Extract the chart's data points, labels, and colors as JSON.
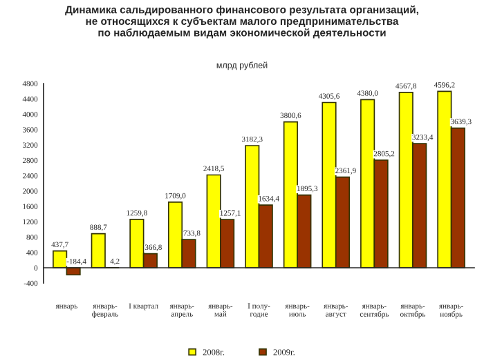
{
  "chart_data": {
    "type": "bar",
    "title": "Динамика сальдированного финансового результата организаций,\nне относящихся к субъектам малого предпринимательства\nпо наблюдаемым видам экономической деятельности",
    "subtitle": "млрд рублей",
    "categories": [
      "январь",
      "январь-\nфевраль",
      "I квартал",
      "январь-\nапрель",
      "январь-\nмай",
      "I полу-\nгодие",
      "январь-\nиюль",
      "январь-\nавгуст",
      "январь-\nсентябрь",
      "январь-\nоктябрь",
      "январь-\nноябрь"
    ],
    "series": [
      {
        "name": "2008г.",
        "color": "#ffff00",
        "values": [
          437.7,
          888.7,
          1259.8,
          1709.0,
          2418.5,
          3182.3,
          3800.6,
          4305.6,
          4380.0,
          4567.8,
          4596.2
        ],
        "value_labels": [
          "437,7",
          "888,7",
          "1259,8",
          "1709,0",
          "2418,5",
          "3182,3",
          "3800,6",
          "4305,6",
          "4380,0",
          "4567,8",
          "4596,2"
        ]
      },
      {
        "name": "2009г.",
        "color": "#993300",
        "values": [
          -184.4,
          4.2,
          366.8,
          733.8,
          1257.1,
          1634.4,
          1895.3,
          2361.9,
          2805.2,
          3233.4,
          3639.3
        ],
        "value_labels": [
          "-184,4",
          "4,2",
          "366,8",
          "733,8",
          "1257,1",
          "1634,4",
          "1895,3",
          "2361,9",
          "2805,2",
          "3233,4",
          "3639,3"
        ]
      }
    ],
    "ylim": [
      -400,
      4800
    ],
    "yticks": [
      -400,
      0,
      400,
      800,
      1200,
      1600,
      2000,
      2400,
      2800,
      3200,
      3600,
      4000,
      4400,
      4800
    ],
    "legend": "bottom"
  }
}
